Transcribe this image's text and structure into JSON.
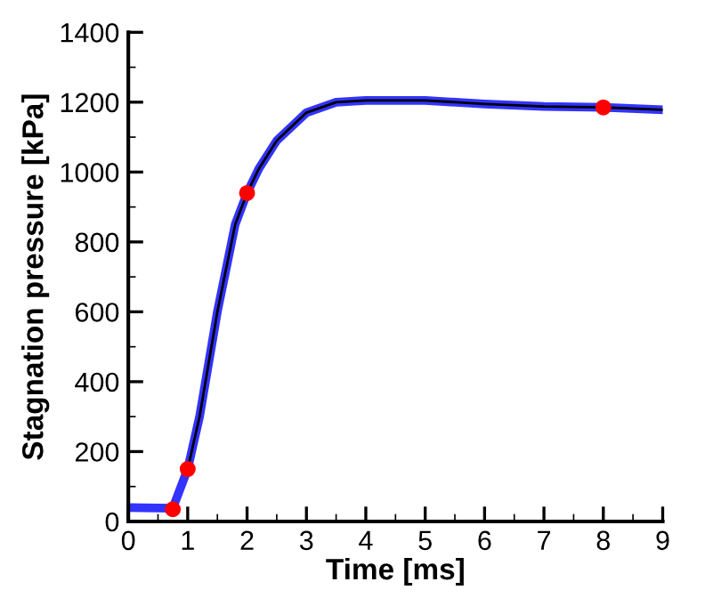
{
  "chart_data": {
    "type": "line",
    "xlabel": "Time [ms]",
    "ylabel": "Stagnation pressure [kPa]",
    "xlim": [
      0,
      9
    ],
    "ylim": [
      0,
      1400
    ],
    "xticks": [
      0,
      {
        "value": 0.5,
        "label": null
      },
      1,
      {
        "value": 1.5,
        "label": null
      },
      2,
      {
        "value": 2.5,
        "label": null
      },
      3,
      {
        "value": 3.5,
        "label": null
      },
      4,
      {
        "value": 4.5,
        "label": null
      },
      5,
      {
        "value": 5.5,
        "label": null
      },
      6,
      {
        "value": 6.5,
        "label": null
      },
      7,
      {
        "value": 7.5,
        "label": null
      },
      8,
      {
        "value": 8.5,
        "label": null
      },
      9
    ],
    "yticks": [
      0,
      {
        "value": 100,
        "label": null
      },
      200,
      {
        "value": 300,
        "label": null
      },
      400,
      {
        "value": 500,
        "label": null
      },
      600,
      {
        "value": 700,
        "label": null
      },
      800,
      {
        "value": 900,
        "label": null
      },
      1000,
      {
        "value": 1100,
        "label": null
      },
      1200,
      {
        "value": 1300,
        "label": null
      },
      1400
    ],
    "grid": false,
    "series": [
      {
        "color": "#3333ff",
        "x": [
          0,
          0.75,
          1.0,
          1.2,
          1.5,
          1.8,
          2.0,
          2.2,
          2.5,
          3.0,
          3.5,
          4.0,
          5.0,
          6.0,
          7.0,
          8.0,
          9.0
        ],
        "values": [
          40,
          38,
          150,
          300,
          600,
          850,
          940,
          1010,
          1090,
          1170,
          1200,
          1205,
          1205,
          1195,
          1188,
          1185,
          1178
        ]
      },
      {
        "color": "#000000",
        "x": [
          1.0,
          1.2,
          1.5,
          1.8,
          2.0,
          2.2,
          2.5,
          3.0,
          3.5,
          4.0,
          5.0,
          6.0,
          7.0,
          8.0,
          9.0
        ],
        "values": [
          150,
          300,
          600,
          850,
          940,
          1010,
          1090,
          1170,
          1200,
          1205,
          1205,
          1195,
          1188,
          1185,
          1178
        ]
      },
      {
        "type": "scatter",
        "color": "#ff0000",
        "marker": "circle",
        "x": [
          0.75,
          1.0,
          2.0,
          8.0
        ],
        "values": [
          35,
          150,
          940,
          1185
        ]
      }
    ]
  }
}
